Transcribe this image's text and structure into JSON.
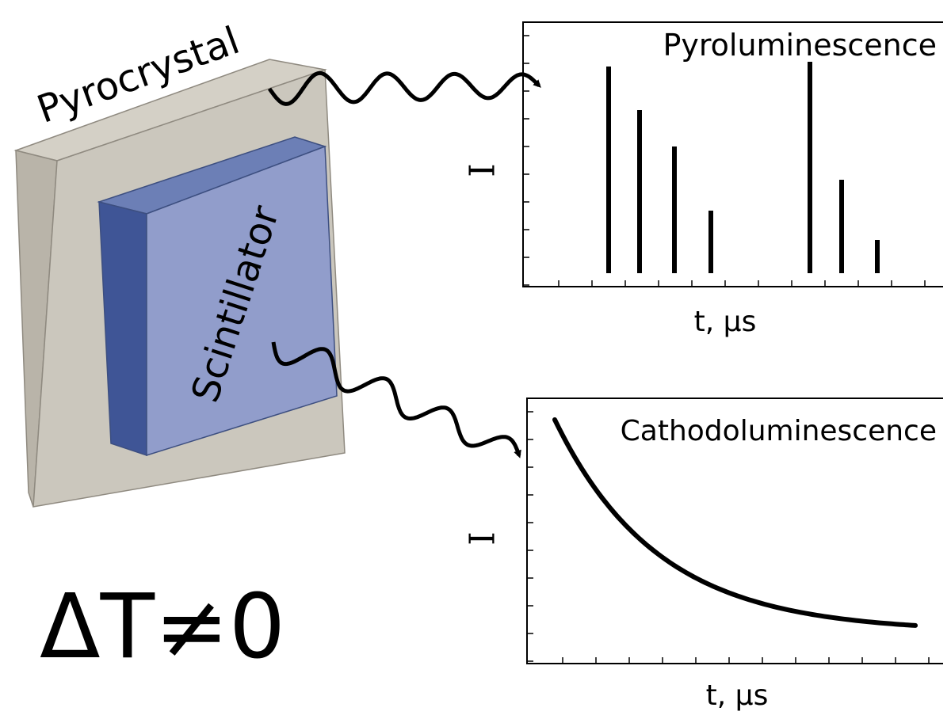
{
  "crystal": {
    "pyrocrystal": "Pyrocrystal",
    "scintillator": "Scintillator",
    "condition": "ΔT≠0"
  },
  "top_plot": {
    "title": "Pyroluminescence",
    "y_label": "I",
    "x_label": "t, μs"
  },
  "bottom_plot": {
    "title": "Cathodoluminescence",
    "y_label": "I",
    "x_label": "t, μs"
  }
}
